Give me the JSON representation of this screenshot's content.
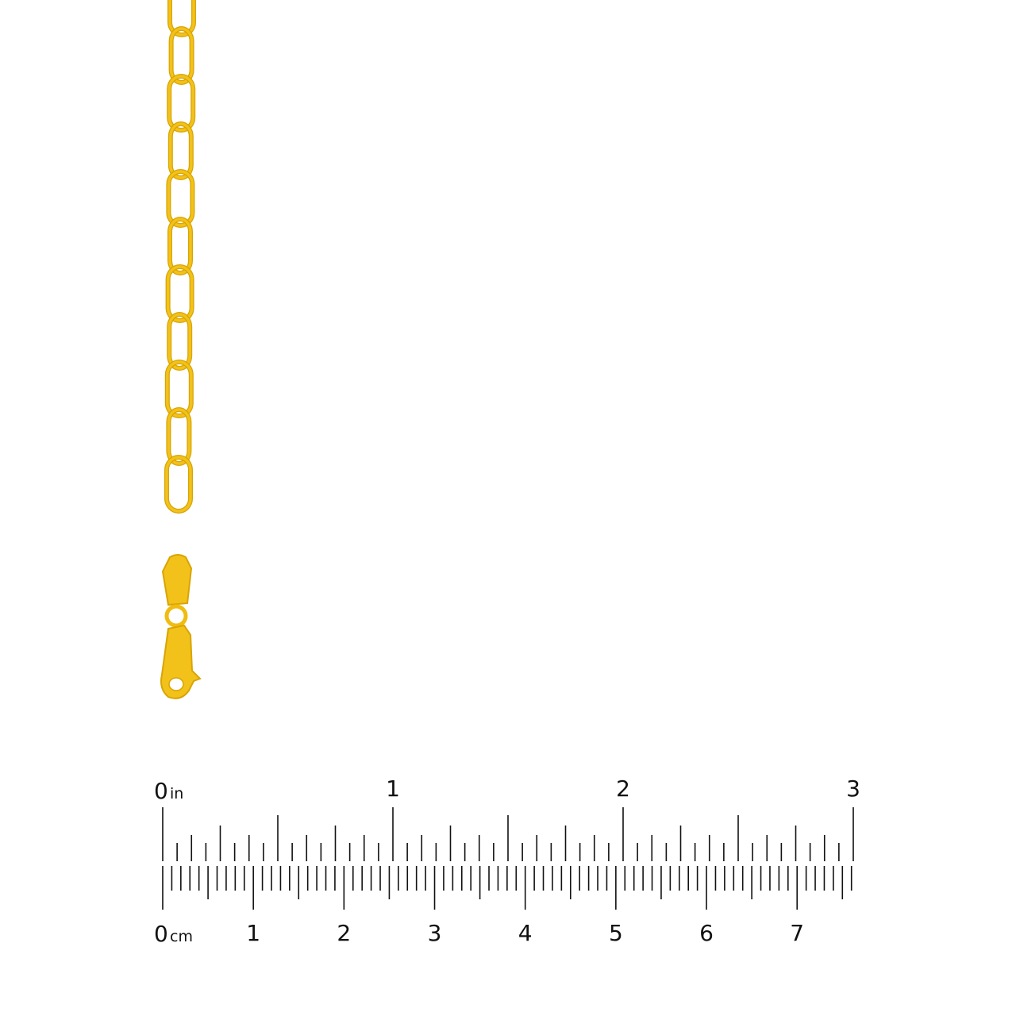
{
  "product": {
    "metal_color": "#f2c21b",
    "metal_shade": "#d9a400"
  },
  "ruler": {
    "inch_unit": "in",
    "cm_unit": "cm",
    "inch_labels": [
      "0",
      "1",
      "2",
      "3"
    ],
    "cm_labels": [
      "0",
      "1",
      "2",
      "3",
      "4",
      "5",
      "6",
      "7"
    ],
    "inch_max": 3,
    "inch_subdivisions": 16,
    "cm_subdivisions": 10,
    "tick_color": "#111111"
  }
}
